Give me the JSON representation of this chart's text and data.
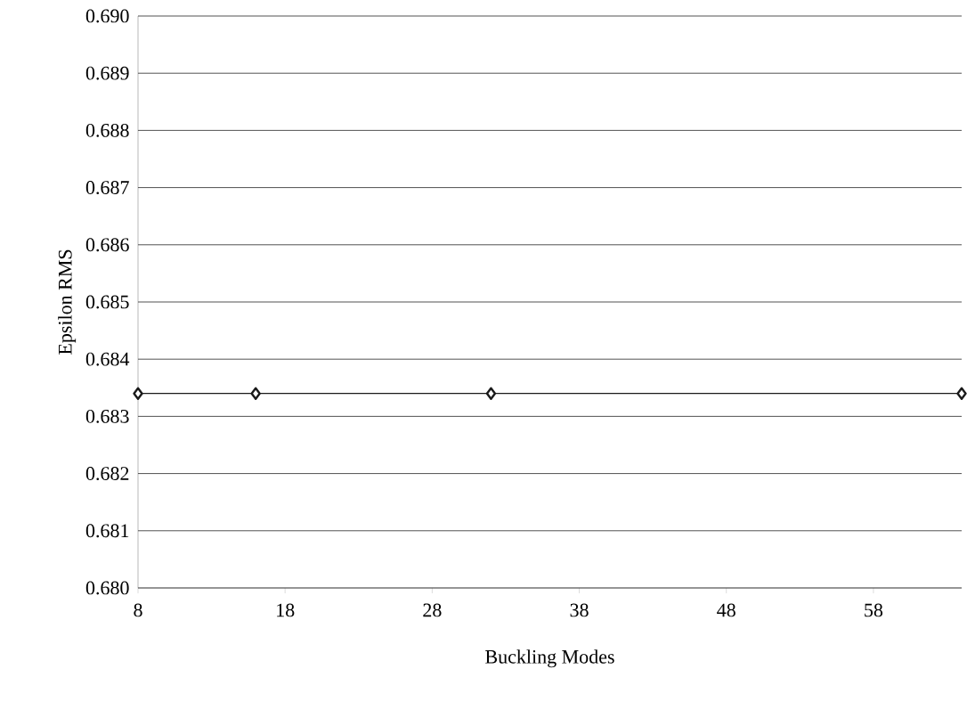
{
  "chart_data": {
    "type": "line",
    "xlabel": "Buckling Modes",
    "ylabel": "Epsilon RMS",
    "x": [
      8,
      16,
      32,
      64
    ],
    "series": [
      {
        "color": "#1a1a1a",
        "values": [
          0.6834,
          0.6834,
          0.6834,
          0.6834
        ]
      }
    ],
    "xlim": [
      8,
      64
    ],
    "ylim": [
      0.68,
      0.69
    ],
    "xticks": [
      8,
      18,
      28,
      38,
      48,
      58
    ],
    "yticks": [
      {
        "value": 0.68,
        "label": "0.680"
      },
      {
        "value": 0.681,
        "label": "0.681"
      },
      {
        "value": 0.682,
        "label": "0.682"
      },
      {
        "value": 0.683,
        "label": "0.683"
      },
      {
        "value": 0.684,
        "label": "0.684"
      },
      {
        "value": 0.685,
        "label": "0.685"
      },
      {
        "value": 0.686,
        "label": "0.686"
      },
      {
        "value": 0.687,
        "label": "0.687"
      },
      {
        "value": 0.688,
        "label": "0.688"
      },
      {
        "value": 0.689,
        "label": "0.689"
      },
      {
        "value": 0.69,
        "label": "0.690"
      }
    ],
    "grid": "y",
    "marker": "diamond",
    "line_style": "solid"
  }
}
